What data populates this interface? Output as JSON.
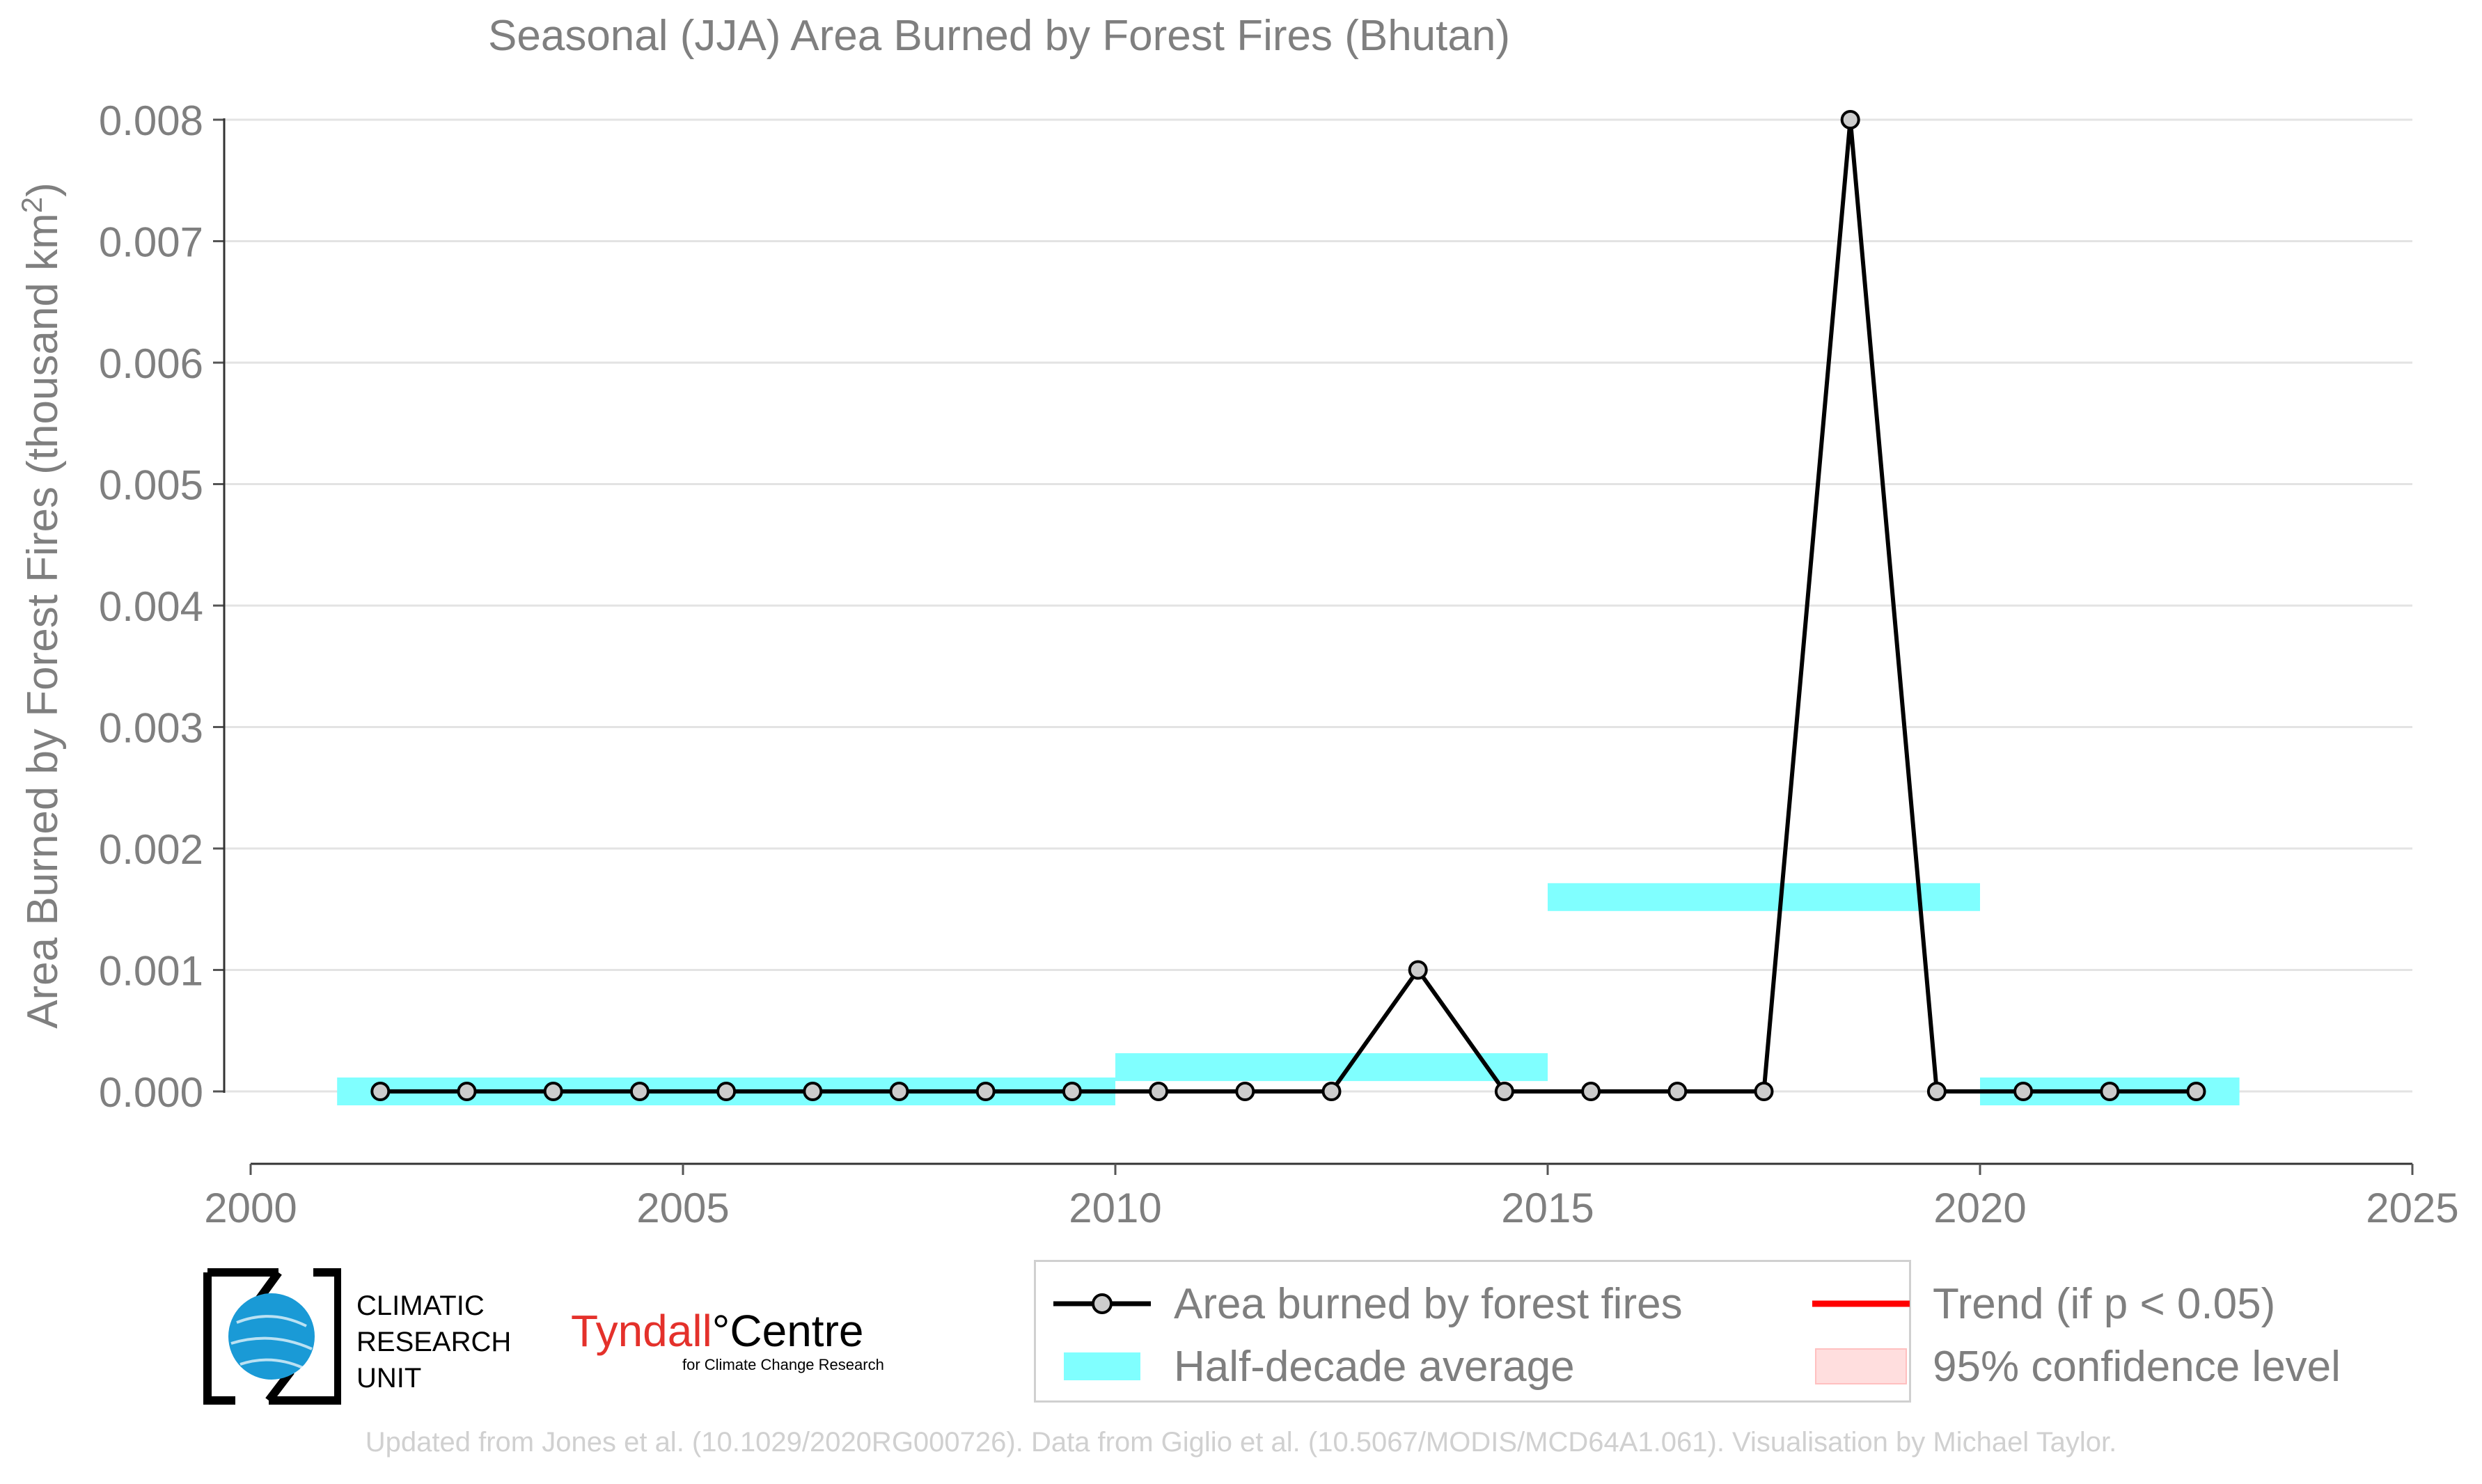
{
  "chart_data": {
    "type": "line",
    "title": "Seasonal (JJA) Area Burned by Forest Fires (Bhutan)",
    "xlabel": "",
    "ylabel": "Area Burned by Forest Fires (thousand km",
    "ylabel_superscript": "2",
    "ylabel_suffix": ")",
    "xlim": [
      2000,
      2025
    ],
    "ylim": [
      -0.0006,
      0.008
    ],
    "x_ticks": [
      "2000",
      "2005",
      "2010",
      "2015",
      "2020",
      "2025"
    ],
    "y_ticks": [
      "0.000",
      "0.001",
      "0.002",
      "0.003",
      "0.004",
      "0.005",
      "0.006",
      "0.007",
      "0.008"
    ],
    "grid": "horizontal",
    "legend_position": "bottom-right",
    "series": [
      {
        "name": "Area burned by forest fires",
        "color": "#000000",
        "marker_fill": "#cccccc",
        "x": [
          2001.5,
          2002.5,
          2003.5,
          2004.5,
          2005.5,
          2006.5,
          2007.5,
          2008.5,
          2009.5,
          2010.5,
          2011.5,
          2012.5,
          2013.5,
          2014.5,
          2015.5,
          2016.5,
          2017.5,
          2018.5,
          2019.5,
          2020.5,
          2021.5,
          2022.5
        ],
        "y": [
          0,
          0,
          0,
          0,
          0,
          0,
          0,
          0,
          0,
          0,
          0,
          0,
          0.001,
          0,
          0,
          0,
          0,
          0.008,
          0,
          0,
          0,
          0
        ]
      }
    ],
    "half_decade_average": {
      "name": "Half-decade average",
      "color": "#80ffff",
      "segments": [
        {
          "x_start": 2001,
          "x_end": 2010,
          "value": 0.0
        },
        {
          "x_start": 2010,
          "x_end": 2015,
          "value": 0.0002
        },
        {
          "x_start": 2015,
          "x_end": 2020,
          "value": 0.0016
        },
        {
          "x_start": 2020,
          "x_end": 2023,
          "value": 0.0
        }
      ]
    }
  },
  "legend": {
    "line_label": "Area burned by forest fires",
    "avg_label": "Half-decade average",
    "trend_label": "Trend (if p < 0.05)",
    "ci_label": "95% confidence level",
    "trend_color": "#ff0000",
    "ci_color": "#ffdede"
  },
  "logos": {
    "cru_text": "CLIMATIC\nRESEARCH\nUNIT",
    "tyndall_red": "Tyndall",
    "tyndall_degree": "°",
    "tyndall_black": "Centre",
    "tyndall_sub": "for Climate Change Research"
  },
  "footer": "Updated from Jones et al. (10.1029/2020RG000726). Data from Giglio et al. (10.5067/MODIS/MCD64A1.061). Visualisation by Michael Taylor."
}
